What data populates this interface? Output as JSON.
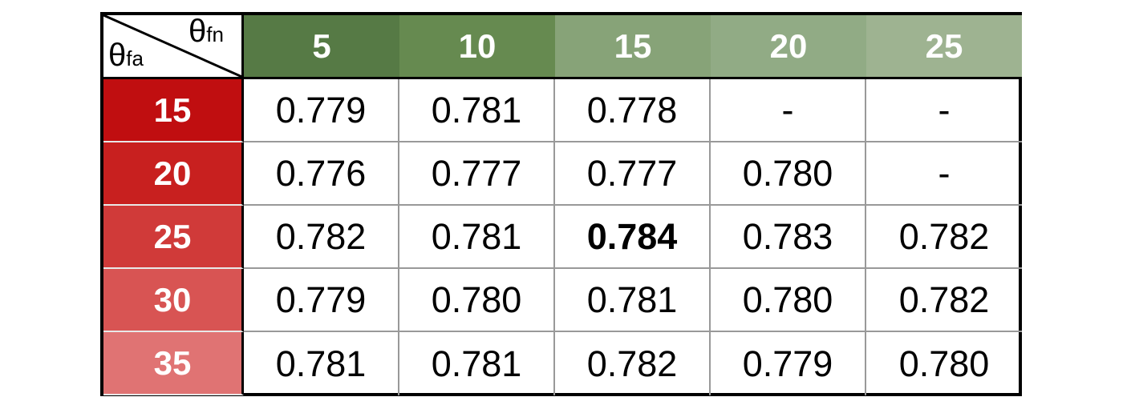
{
  "table": {
    "corner": {
      "row_symbol": "θ",
      "row_sub": "fa",
      "col_symbol": "θ",
      "col_sub": "fn"
    },
    "columns": [
      "5",
      "10",
      "15",
      "20",
      "25"
    ],
    "column_colors": [
      "#567a45",
      "#668a50",
      "#87a378",
      "#91ab85",
      "#9eb391"
    ],
    "rows": [
      {
        "label": "15",
        "color": "#c00e10",
        "cells": [
          "0.779",
          "0.781",
          "0.778",
          "-",
          "-"
        ]
      },
      {
        "label": "20",
        "color": "#c8201f",
        "cells": [
          "0.776",
          "0.777",
          "0.777",
          "0.780",
          "-"
        ]
      },
      {
        "label": "25",
        "color": "#d03a39",
        "cells": [
          "0.782",
          "0.781",
          "0.784",
          "0.783",
          "0.782"
        ]
      },
      {
        "label": "30",
        "color": "#d85453",
        "cells": [
          "0.779",
          "0.780",
          "0.781",
          "0.780",
          "0.782"
        ]
      },
      {
        "label": "35",
        "color": "#e07373",
        "cells": [
          "0.781",
          "0.781",
          "0.782",
          "0.779",
          "0.780"
        ]
      }
    ],
    "bold_cell": {
      "row": 2,
      "col": 2
    }
  }
}
